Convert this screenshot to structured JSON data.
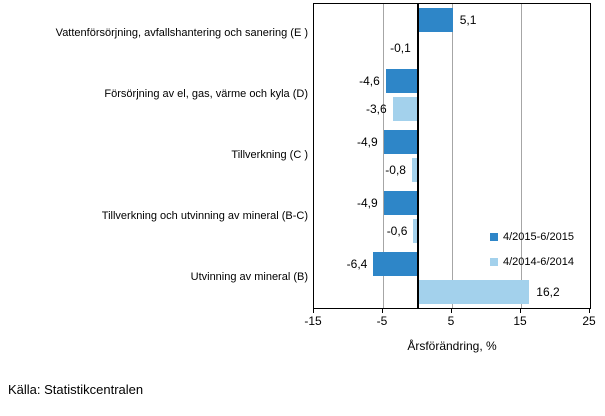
{
  "source": "Källa: Statistikcentralen",
  "chart_data": {
    "type": "bar",
    "orientation": "horizontal",
    "title": "",
    "xlabel": "Årsförändring, %",
    "ylabel": "",
    "xlim": [
      -15,
      25
    ],
    "xticks": [
      -15,
      -5,
      5,
      15,
      25
    ],
    "xtick_labels": [
      "-15",
      "-5",
      "5",
      "15",
      "25"
    ],
    "gridlines_at": [
      -5,
      5,
      15
    ],
    "grid": true,
    "legend_position": "inside-right",
    "plot_border_color": "#000000",
    "gridline_color": "#a6a6a6",
    "categories": [
      "Vattenförsörjning, avfallshantering och sanering (E )",
      "Försörjning av el, gas, värme och kyla (D)",
      "Tillverkning (C )",
      "Tillverkning och utvinning av mineral (B-C)",
      "Utvinning av mineral (B)"
    ],
    "series": [
      {
        "name": "4/2015-6/2015",
        "color": "#2e86c8",
        "values": [
          5.1,
          -4.6,
          -4.9,
          -4.9,
          -6.4
        ],
        "value_labels": [
          "5,1",
          "-4,6",
          "-4,9",
          "-4,9",
          "-6,4"
        ]
      },
      {
        "name": "4/2014-6/2014",
        "color": "#a3d1ec",
        "values": [
          -0.1,
          -3.6,
          -0.8,
          -0.6,
          16.2
        ],
        "value_labels": [
          "-0,1",
          "-3,6",
          "-0,8",
          "-0,6",
          "16,2"
        ]
      }
    ]
  }
}
